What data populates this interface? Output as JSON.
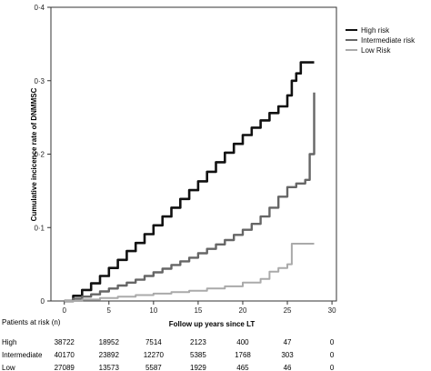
{
  "chart_data": {
    "type": "line",
    "title": "",
    "xlabel": "Follow up years since LT",
    "ylabel": "Cumulative incicence rate of DNMMSC",
    "xlim": [
      -1.5,
      30.5
    ],
    "ylim": [
      0,
      0.4
    ],
    "x_ticks": [
      0,
      5,
      10,
      15,
      20,
      25,
      30
    ],
    "y_ticks": [
      0,
      0.1,
      0.2,
      0.3,
      0.4
    ],
    "x_tick_labels": [
      "0",
      "5",
      "10",
      "15",
      "20",
      "25",
      "30"
    ],
    "y_tick_labels": [
      "0",
      "0·1",
      "0·2",
      "0·3",
      "0·4"
    ],
    "legend_position": "right",
    "grid": false,
    "series": [
      {
        "name": "High risk",
        "color": "#111111",
        "line_style": "solid",
        "points": [
          [
            0,
            0
          ],
          [
            1,
            0.007
          ],
          [
            2,
            0.015
          ],
          [
            3,
            0.024
          ],
          [
            4,
            0.034
          ],
          [
            5,
            0.045
          ],
          [
            6,
            0.056
          ],
          [
            7,
            0.068
          ],
          [
            8,
            0.079
          ],
          [
            9,
            0.091
          ],
          [
            10,
            0.103
          ],
          [
            11,
            0.115
          ],
          [
            12,
            0.127
          ],
          [
            13,
            0.139
          ],
          [
            14,
            0.151
          ],
          [
            15,
            0.163
          ],
          [
            16,
            0.176
          ],
          [
            17,
            0.189
          ],
          [
            18,
            0.202
          ],
          [
            19,
            0.214
          ],
          [
            20,
            0.226
          ],
          [
            21,
            0.236
          ],
          [
            22,
            0.246
          ],
          [
            23,
            0.256
          ],
          [
            24,
            0.265
          ],
          [
            25,
            0.28
          ],
          [
            25.5,
            0.3
          ],
          [
            26,
            0.31
          ],
          [
            26.5,
            0.325
          ],
          [
            28,
            0.325
          ]
        ]
      },
      {
        "name": "Intermediate risk",
        "color": "#666666",
        "line_style": "solid",
        "points": [
          [
            0,
            0
          ],
          [
            1,
            0.003
          ],
          [
            2,
            0.006
          ],
          [
            3,
            0.009
          ],
          [
            4,
            0.013
          ],
          [
            5,
            0.017
          ],
          [
            6,
            0.021
          ],
          [
            7,
            0.025
          ],
          [
            8,
            0.029
          ],
          [
            9,
            0.034
          ],
          [
            10,
            0.039
          ],
          [
            11,
            0.044
          ],
          [
            12,
            0.049
          ],
          [
            13,
            0.054
          ],
          [
            14,
            0.059
          ],
          [
            15,
            0.065
          ],
          [
            16,
            0.071
          ],
          [
            17,
            0.077
          ],
          [
            18,
            0.083
          ],
          [
            19,
            0.09
          ],
          [
            20,
            0.097
          ],
          [
            21,
            0.105
          ],
          [
            22,
            0.115
          ],
          [
            23,
            0.127
          ],
          [
            24,
            0.142
          ],
          [
            25,
            0.155
          ],
          [
            26,
            0.16
          ],
          [
            27,
            0.165
          ],
          [
            27.5,
            0.2
          ],
          [
            28,
            0.284
          ]
        ]
      },
      {
        "name": "Low Risk",
        "color": "#aaaaaa",
        "line_style": "solid",
        "points": [
          [
            0,
            0
          ],
          [
            2,
            0.002
          ],
          [
            4,
            0.004
          ],
          [
            6,
            0.006
          ],
          [
            8,
            0.008
          ],
          [
            10,
            0.01
          ],
          [
            12,
            0.012
          ],
          [
            14,
            0.014
          ],
          [
            16,
            0.017
          ],
          [
            18,
            0.02
          ],
          [
            20,
            0.025
          ],
          [
            22,
            0.03
          ],
          [
            23,
            0.04
          ],
          [
            24,
            0.045
          ],
          [
            25,
            0.05
          ],
          [
            25.5,
            0.078
          ],
          [
            28,
            0.078
          ]
        ]
      }
    ]
  },
  "risk_table": {
    "title": "Patients at risk (n)",
    "times": [
      0,
      5,
      10,
      15,
      20,
      25,
      30
    ],
    "rows": [
      {
        "label": "High",
        "counts": [
          "38722",
          "18952",
          "7514",
          "2123",
          "400",
          "47",
          "0"
        ]
      },
      {
        "label": "Intermediate",
        "counts": [
          "40170",
          "23892",
          "12270",
          "5385",
          "1768",
          "303",
          "0"
        ]
      },
      {
        "label": "Low",
        "counts": [
          "27089",
          "13573",
          "5587",
          "1929",
          "465",
          "46",
          "0"
        ]
      }
    ]
  }
}
